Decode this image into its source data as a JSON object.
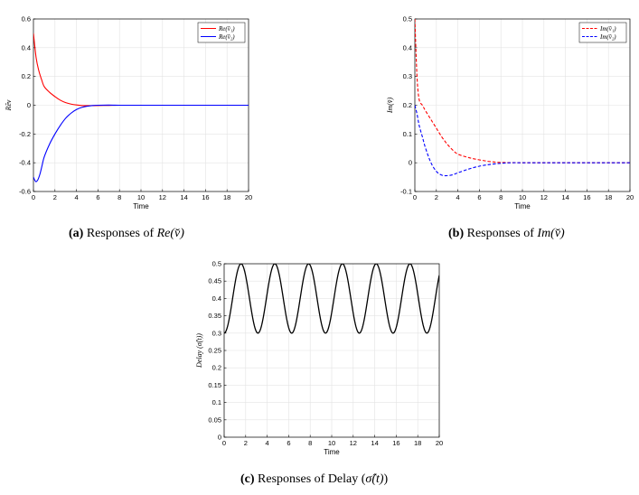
{
  "chart_data": [
    {
      "type": "line",
      "xlabel": "Time",
      "ylabel": "Rĕv",
      "xlim": [
        0,
        20
      ],
      "ylim": [
        -0.6,
        0.6
      ],
      "xticks": [
        "0",
        "2",
        "4",
        "6",
        "8",
        "10",
        "12",
        "14",
        "16",
        "18",
        "20"
      ],
      "yticks": [
        "0.6",
        "0.4",
        "0.2",
        "0",
        "-0.2",
        "-0.4",
        "-0.6"
      ],
      "grid": true,
      "legend_position": "top-right",
      "series": [
        {
          "name": "Re(v̆₁)",
          "color": "#ff0000",
          "style": "solid",
          "x": [
            0,
            0.25,
            0.5,
            0.75,
            1,
            1.5,
            2,
            2.5,
            3,
            3.5,
            4,
            4.5,
            5,
            6,
            7,
            8,
            10,
            12,
            14,
            16,
            18,
            20
          ],
          "y": [
            0.5,
            0.33,
            0.24,
            0.18,
            0.13,
            0.09,
            0.06,
            0.035,
            0.018,
            0.008,
            0.002,
            -0.002,
            -0.003,
            -0.002,
            -0.001,
            0,
            0,
            0,
            0,
            0,
            0,
            0
          ]
        },
        {
          "name": "Re(v̆₂)",
          "color": "#0000ff",
          "style": "solid",
          "x": [
            0,
            0.2,
            0.4,
            0.6,
            0.8,
            1,
            1.5,
            2,
            2.5,
            3,
            3.5,
            4,
            4.5,
            5,
            5.5,
            6,
            7,
            8,
            10,
            12,
            14,
            16,
            18,
            20
          ],
          "y": [
            -0.5,
            -0.53,
            -0.52,
            -0.48,
            -0.42,
            -0.36,
            -0.27,
            -0.2,
            -0.14,
            -0.09,
            -0.055,
            -0.03,
            -0.015,
            -0.007,
            -0.002,
            0,
            0.001,
            0,
            0,
            0,
            0,
            0,
            0,
            0
          ]
        }
      ]
    },
    {
      "type": "line",
      "xlabel": "Time",
      "ylabel": "Im(v̆)",
      "xlim": [
        0,
        20
      ],
      "ylim": [
        -0.1,
        0.5
      ],
      "xticks": [
        "0",
        "2",
        "4",
        "6",
        "8",
        "10",
        "12",
        "14",
        "16",
        "18",
        "20"
      ],
      "yticks": [
        "0.5",
        "0.4",
        "0.3",
        "0.2",
        "0.1",
        "0",
        "-0.1"
      ],
      "grid": true,
      "legend_position": "top-right",
      "series": [
        {
          "name": "Im(v̆₁)",
          "color": "#ff0000",
          "style": "dashed",
          "x": [
            0,
            0.2,
            0.4,
            0.7,
            1,
            1.5,
            2,
            2.5,
            3,
            3.5,
            4,
            5,
            6,
            7,
            8,
            10,
            12,
            14,
            16,
            18,
            20
          ],
          "y": [
            0.5,
            0.3,
            0.22,
            0.2,
            0.18,
            0.15,
            0.12,
            0.09,
            0.065,
            0.045,
            0.03,
            0.018,
            0.01,
            0.004,
            0.001,
            0,
            0,
            0,
            0,
            0,
            0
          ]
        },
        {
          "name": "Im(v̆₂)",
          "color": "#0000ff",
          "style": "dashed",
          "x": [
            0,
            0.2,
            0.4,
            0.7,
            1,
            1.5,
            2,
            2.5,
            3,
            3.5,
            4,
            5,
            6,
            7,
            8,
            9,
            10,
            12,
            14,
            16,
            18,
            20
          ],
          "y": [
            0.2,
            0.17,
            0.13,
            0.09,
            0.05,
            0.0,
            -0.03,
            -0.043,
            -0.045,
            -0.042,
            -0.035,
            -0.022,
            -0.012,
            -0.006,
            -0.002,
            0,
            0,
            0,
            0,
            0,
            0,
            0
          ]
        }
      ]
    },
    {
      "type": "line",
      "xlabel": "Time",
      "ylabel": "Delay (σ̂(t))",
      "xlim": [
        0,
        20
      ],
      "ylim": [
        0,
        0.5
      ],
      "xticks": [
        "0",
        "2",
        "4",
        "6",
        "8",
        "10",
        "12",
        "14",
        "16",
        "18",
        "20"
      ],
      "yticks": [
        "0.5",
        "0.45",
        "0.4",
        "0.35",
        "0.3",
        "0.25",
        "0.2",
        "0.15",
        "0.1",
        "0.05",
        "0"
      ],
      "grid": true,
      "series": [
        {
          "name": "",
          "color": "#000000",
          "style": "solid",
          "function": "0.4 - 0.1*cos(2*t)"
        }
      ]
    }
  ],
  "captions": {
    "a": {
      "tag": "(a)",
      "text": " Responses of ",
      "math": "Re(v̆)"
    },
    "b": {
      "tag": "(b)",
      "text": " Responses of ",
      "math": "Im(v̆)"
    },
    "c": {
      "tag": "(c)",
      "text": " Responses of Delay (",
      "math": "σ̂(t)",
      "after": ")"
    }
  }
}
